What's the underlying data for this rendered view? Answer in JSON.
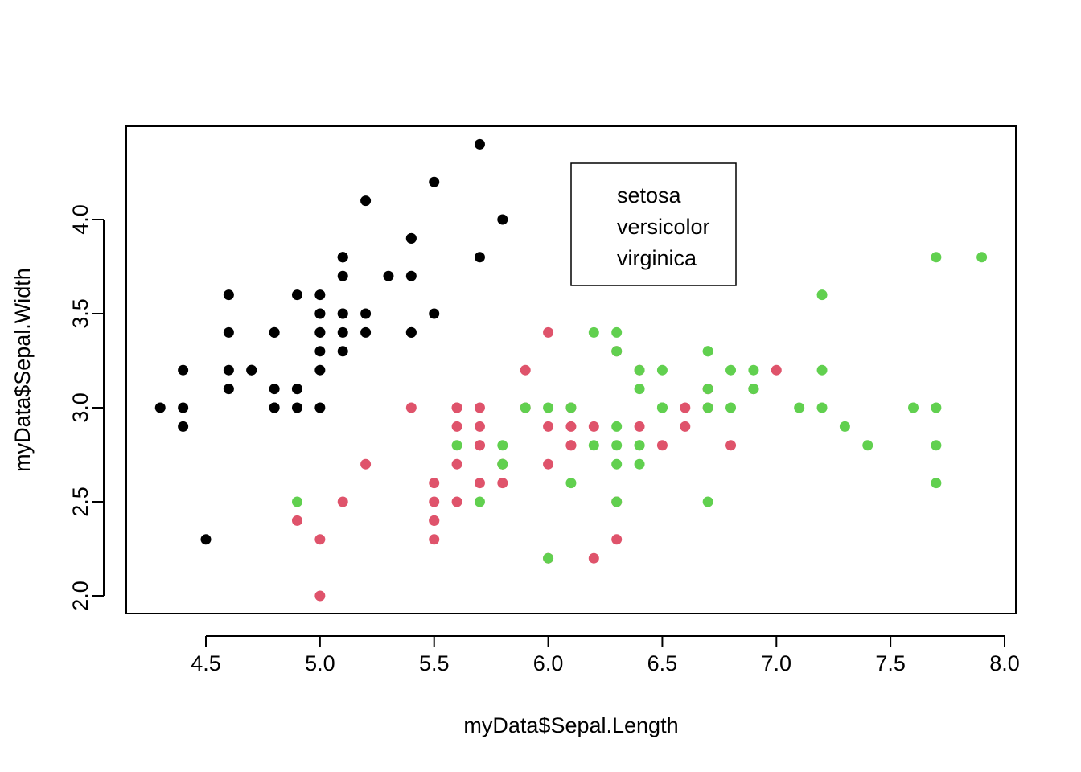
{
  "chart_data": {
    "type": "scatter",
    "title": "",
    "xlabel": "myData$Sepal.Length",
    "ylabel": "myData$Sepal.Width",
    "xlim": [
      4.3,
      7.9
    ],
    "ylim": [
      2.0,
      4.4
    ],
    "x_ticks": [
      "4.5",
      "5.0",
      "5.5",
      "6.0",
      "6.5",
      "7.0",
      "7.5",
      "8.0"
    ],
    "y_ticks": [
      "2.0",
      "2.5",
      "3.0",
      "3.5",
      "4.0"
    ],
    "grid": false,
    "legend_position": "top-center",
    "legend_markers_shown": false,
    "series": [
      {
        "name": "setosa",
        "color": "#000000",
        "x": [
          5.1,
          4.9,
          4.7,
          4.6,
          5.0,
          5.4,
          4.6,
          5.0,
          4.4,
          4.9,
          5.4,
          4.8,
          4.8,
          4.3,
          5.8,
          5.7,
          5.4,
          5.1,
          5.7,
          5.1,
          5.4,
          5.1,
          4.6,
          5.1,
          4.8,
          5.0,
          5.0,
          5.2,
          5.2,
          4.7,
          4.8,
          5.4,
          5.2,
          5.5,
          4.9,
          5.0,
          5.5,
          4.9,
          4.4,
          5.1,
          5.0,
          4.5,
          4.4,
          5.0,
          5.1,
          4.8,
          5.1,
          4.6,
          5.3,
          5.0
        ],
        "y": [
          3.5,
          3.0,
          3.2,
          3.1,
          3.6,
          3.9,
          3.4,
          3.4,
          2.9,
          3.1,
          3.7,
          3.4,
          3.0,
          3.0,
          4.0,
          4.4,
          3.9,
          3.5,
          3.8,
          3.8,
          3.4,
          3.7,
          3.6,
          3.3,
          3.4,
          3.0,
          3.4,
          3.5,
          3.4,
          3.2,
          3.1,
          3.4,
          4.1,
          4.2,
          3.1,
          3.2,
          3.5,
          3.6,
          3.0,
          3.4,
          3.5,
          2.3,
          3.2,
          3.5,
          3.8,
          3.0,
          3.8,
          3.2,
          3.7,
          3.3
        ]
      },
      {
        "name": "versicolor",
        "color": "#DF536B",
        "x": [
          7.0,
          6.4,
          6.9,
          5.5,
          6.5,
          5.7,
          6.3,
          4.9,
          6.6,
          5.2,
          5.0,
          5.9,
          6.0,
          6.1,
          5.6,
          6.7,
          5.6,
          5.8,
          6.2,
          5.6,
          5.9,
          6.1,
          6.3,
          6.1,
          6.4,
          6.6,
          6.8,
          6.7,
          6.0,
          5.7,
          5.5,
          5.5,
          5.8,
          6.0,
          5.4,
          6.0,
          6.7,
          6.3,
          5.6,
          5.5,
          5.5,
          6.1,
          5.8,
          5.0,
          5.6,
          5.7,
          5.7,
          6.2,
          5.1,
          5.7
        ],
        "y": [
          3.2,
          3.2,
          3.1,
          2.3,
          2.8,
          2.8,
          3.3,
          2.4,
          2.9,
          2.7,
          2.0,
          3.0,
          2.2,
          2.9,
          2.9,
          3.1,
          3.0,
          2.7,
          2.2,
          2.5,
          3.2,
          2.8,
          2.5,
          2.8,
          2.9,
          3.0,
          2.8,
          3.0,
          2.9,
          2.6,
          2.4,
          2.4,
          2.7,
          2.7,
          3.0,
          3.4,
          3.1,
          2.3,
          3.0,
          2.5,
          2.6,
          3.0,
          2.6,
          2.3,
          2.7,
          3.0,
          2.9,
          2.9,
          2.5,
          2.8
        ]
      },
      {
        "name": "virginica",
        "color": "#61D04F",
        "x": [
          6.3,
          5.8,
          7.1,
          6.3,
          6.5,
          7.6,
          4.9,
          7.3,
          6.7,
          7.2,
          6.5,
          6.4,
          6.8,
          5.7,
          5.8,
          6.4,
          6.5,
          7.7,
          7.7,
          6.0,
          6.9,
          5.6,
          7.7,
          6.3,
          6.7,
          7.2,
          6.2,
          6.1,
          6.4,
          7.2,
          7.4,
          7.9,
          6.4,
          6.3,
          6.1,
          7.7,
          6.3,
          6.4,
          6.0,
          6.9,
          6.7,
          6.9,
          5.8,
          6.8,
          6.7,
          6.7,
          6.3,
          6.5,
          6.2,
          5.9
        ],
        "y": [
          3.3,
          2.7,
          3.0,
          2.9,
          3.0,
          3.0,
          2.5,
          2.9,
          2.5,
          3.6,
          3.2,
          2.7,
          3.0,
          2.5,
          2.8,
          3.2,
          3.0,
          3.8,
          2.6,
          2.2,
          3.2,
          2.8,
          2.8,
          2.7,
          3.3,
          3.2,
          2.8,
          3.0,
          2.8,
          3.0,
          2.8,
          3.8,
          2.8,
          2.8,
          2.6,
          3.0,
          3.4,
          3.1,
          3.0,
          3.1,
          3.1,
          3.1,
          2.7,
          3.2,
          3.3,
          3.0,
          2.5,
          3.0,
          3.4,
          3.0
        ]
      }
    ]
  }
}
